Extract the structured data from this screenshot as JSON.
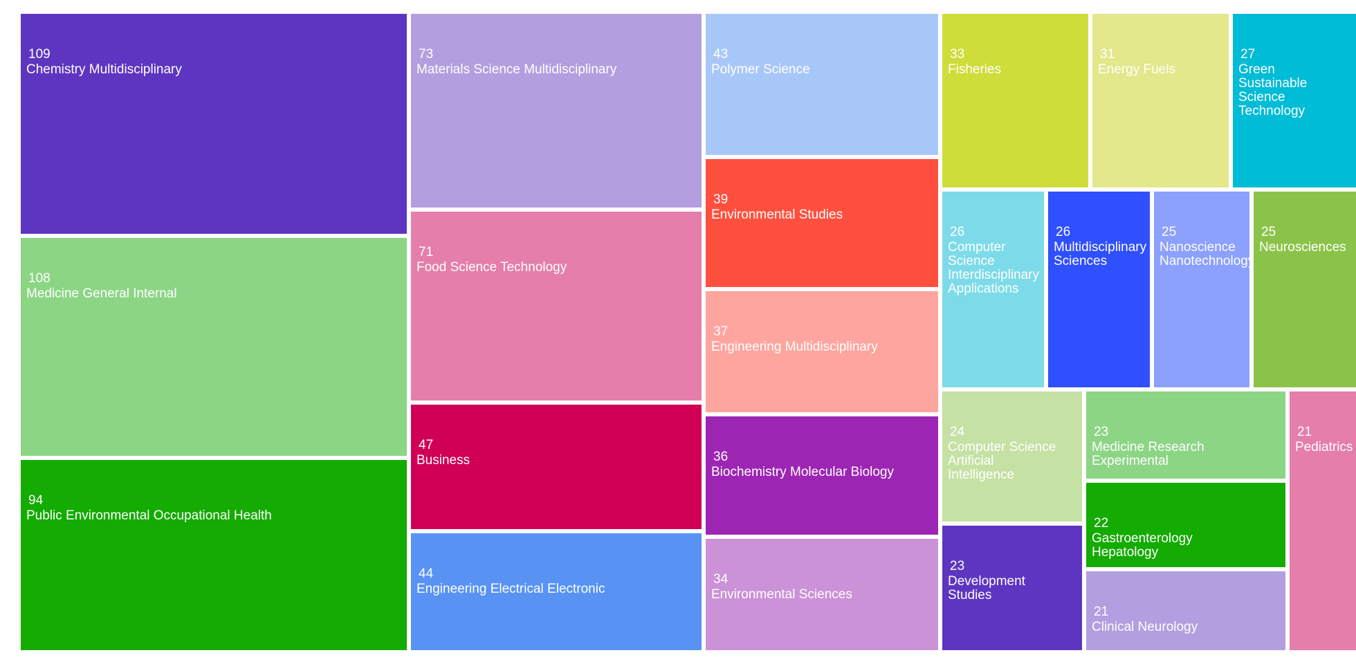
{
  "chart_data": {
    "type": "treemap",
    "title": "",
    "items": [
      {
        "label": "Chemistry Multidisciplinary",
        "value": 109,
        "color": "#5e35c1"
      },
      {
        "label": "Medicine General Internal",
        "value": 108,
        "color": "#8cd585"
      },
      {
        "label": "Public Environmental Occupational Health",
        "value": 94,
        "color": "#14ab03"
      },
      {
        "label": "Materials Science Multidisciplinary",
        "value": 73,
        "color": "#b39ee0"
      },
      {
        "label": "Food Science Technology",
        "value": 71,
        "color": "#e57eab"
      },
      {
        "label": "Business",
        "value": 47,
        "color": "#cf0055"
      },
      {
        "label": "Engineering Electrical Electronic",
        "value": 44,
        "color": "#5893f4"
      },
      {
        "label": "Polymer Science",
        "value": 43,
        "color": "#a8c7f9"
      },
      {
        "label": "Environmental Studies",
        "value": 39,
        "color": "#ff503f"
      },
      {
        "label": "Engineering Multidisciplinary",
        "value": 37,
        "color": "#ffa59f"
      },
      {
        "label": "Biochemistry Molecular Biology",
        "value": 36,
        "color": "#9c26b3"
      },
      {
        "label": "Environmental Sciences",
        "value": 34,
        "color": "#cb92d7"
      },
      {
        "label": "Fisheries",
        "value": 33,
        "color": "#cedd3a"
      },
      {
        "label": "Energy Fuels",
        "value": 31,
        "color": "#e2e88b"
      },
      {
        "label": "Green Sustainable Science Technology",
        "value": 27,
        "color": "#00bcd6"
      },
      {
        "label": "Computer Science Interdisciplinary Applications",
        "value": 26,
        "color": "#7ddbe9"
      },
      {
        "label": "Multidisciplinary Sciences",
        "value": 26,
        "color": "#304ffe"
      },
      {
        "label": "Nanoscience Nanotechnology",
        "value": 25,
        "color": "#8ca0fe"
      },
      {
        "label": "Neurosciences",
        "value": 25,
        "color": "#8bc34a"
      },
      {
        "label": "Computer Science Artificial Intelligence",
        "value": 24,
        "color": "#c5e1a4"
      },
      {
        "label": "Development Studies",
        "value": 23,
        "color": "#5e35c1"
      },
      {
        "label": "Medicine Research Experimental",
        "value": 23,
        "color": "#8cd585"
      },
      {
        "label": "Gastroenterology Hepatology",
        "value": 22,
        "color": "#14ab03"
      },
      {
        "label": "Clinical Neurology",
        "value": 21,
        "color": "#b39ee0"
      },
      {
        "label": "Pediatrics",
        "value": 21,
        "color": "#e57eab"
      }
    ]
  }
}
